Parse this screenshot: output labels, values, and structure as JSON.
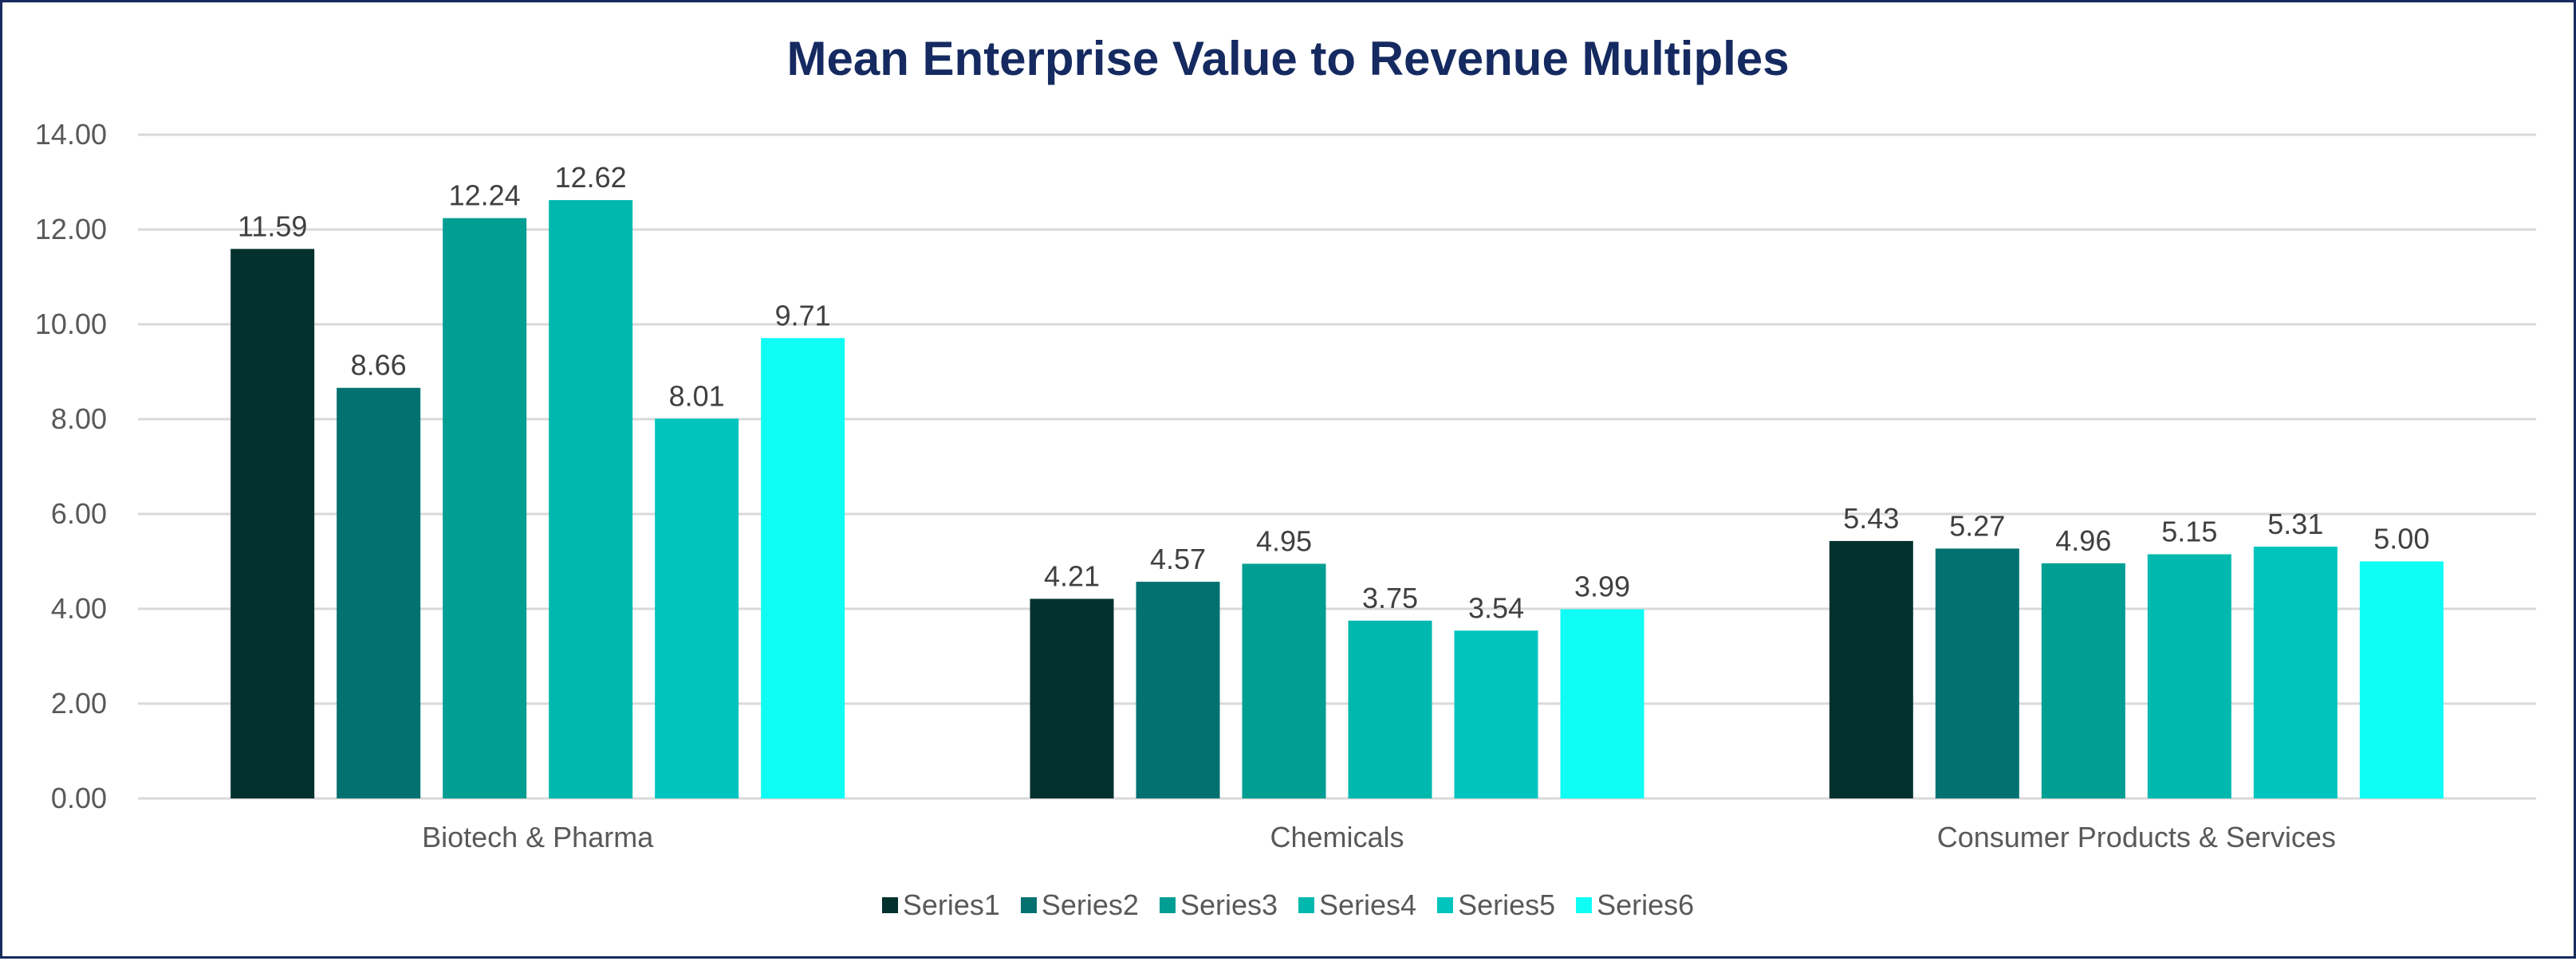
{
  "chart_data": {
    "type": "bar",
    "title": "Mean Enterprise Value to Revenue Multiples",
    "xlabel": "",
    "ylabel": "",
    "ylim": [
      0,
      14
    ],
    "yticks": [
      "0.00",
      "2.00",
      "4.00",
      "6.00",
      "8.00",
      "10.00",
      "12.00",
      "14.00"
    ],
    "grid": true,
    "legend_position": "bottom",
    "categories": [
      "Biotech & Pharma",
      "Chemicals",
      "Consumer Products & Services"
    ],
    "series": [
      {
        "name": "Series1",
        "color": "#03312E",
        "values": [
          11.59,
          4.21,
          5.43
        ],
        "labels": [
          "11.59",
          "4.21",
          "5.43"
        ]
      },
      {
        "name": "Series2",
        "color": "#027170",
        "values": [
          8.66,
          4.57,
          5.27
        ],
        "labels": [
          "8.66",
          "4.57",
          "5.27"
        ]
      },
      {
        "name": "Series3",
        "color": "#009E93",
        "values": [
          12.24,
          4.95,
          4.96
        ],
        "labels": [
          "12.24",
          "4.95",
          "4.96"
        ]
      },
      {
        "name": "Series4",
        "color": "#00B8AE",
        "values": [
          12.62,
          3.75,
          5.15
        ],
        "labels": [
          "12.62",
          "3.75",
          "5.15"
        ]
      },
      {
        "name": "Series5",
        "color": "#00C4BE",
        "values": [
          8.01,
          3.54,
          5.31
        ],
        "labels": [
          "8.01",
          "3.54",
          "5.31"
        ]
      },
      {
        "name": "Series6",
        "color": "#0FFDF5",
        "values": [
          9.71,
          3.99,
          5.0
        ],
        "labels": [
          "9.71",
          "3.99",
          "5.00"
        ]
      }
    ]
  }
}
